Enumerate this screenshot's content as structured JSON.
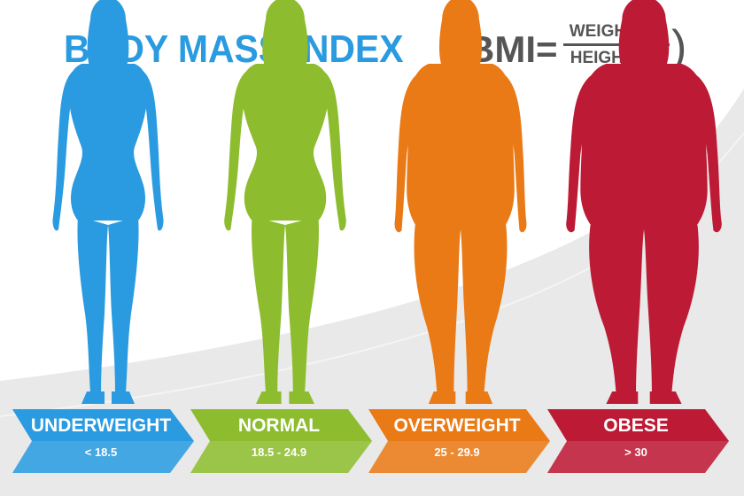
{
  "title": {
    "main": "BODY MASS INDEX",
    "open_paren": "(",
    "bmi": "BMI=",
    "numerator": "WEIGHT Kg",
    "denominator": "HEIGHT m2",
    "close_paren": ")"
  },
  "categories": [
    {
      "label": "UNDERWEIGHT",
      "range": "< 18.5",
      "color": "#2a9be0"
    },
    {
      "label": "NORMAL",
      "range": "18.5 - 24.9",
      "color": "#8dbd2f"
    },
    {
      "label": "OVERWEIGHT",
      "range": "25 - 29.9",
      "color": "#e97a16"
    },
    {
      "label": "OBESE",
      "range": "> 30",
      "color": "#bd1a35"
    }
  ],
  "colors": {
    "title": "#2a9be0",
    "formula": "#555555",
    "background_band": "#e9e9e9",
    "background": "#ffffff"
  }
}
